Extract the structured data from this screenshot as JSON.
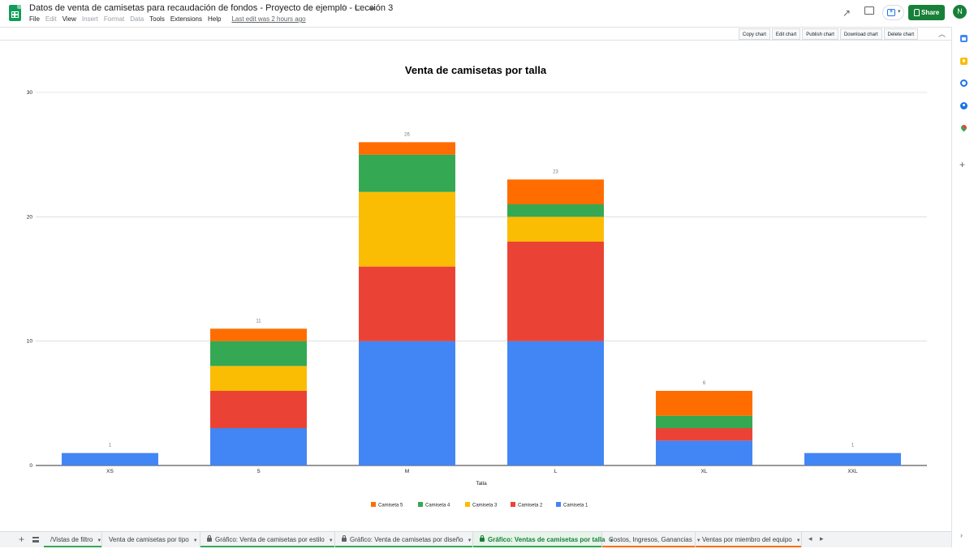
{
  "header": {
    "doc_title": "Datos de venta de camisetas para recaudación de fondos - Proyecto de ejemplo - Lección 3",
    "menu": [
      {
        "label": "File",
        "disabled": false
      },
      {
        "label": "Edit",
        "disabled": true
      },
      {
        "label": "View",
        "disabled": false
      },
      {
        "label": "Insert",
        "disabled": true
      },
      {
        "label": "Format",
        "disabled": true
      },
      {
        "label": "Data",
        "disabled": true
      },
      {
        "label": "Tools",
        "disabled": false
      },
      {
        "label": "Extensions",
        "disabled": false
      },
      {
        "label": "Help",
        "disabled": false
      }
    ],
    "last_edit": "Last edit was 2 hours ago",
    "share_label": "Share",
    "avatar_letter": "N"
  },
  "chart_toolbar": {
    "buttons": [
      "Copy chart",
      "Edit chart",
      "Publish chart",
      "Download chart",
      "Delete chart"
    ]
  },
  "chart_data": {
    "type": "bar",
    "stacked": true,
    "title": "Venta de camisetas por talla",
    "xlabel": "Talla",
    "ylabel": "",
    "ylim": [
      0,
      30
    ],
    "yticks": [
      0,
      10,
      20,
      30
    ],
    "categories": [
      "XS",
      "S",
      "M",
      "L",
      "XL",
      "XXL"
    ],
    "totals": [
      1,
      11,
      26,
      23,
      6,
      1
    ],
    "series": [
      {
        "name": "Camiseta 1",
        "color": "#4285f4",
        "values": [
          1,
          3,
          10,
          10,
          2,
          1
        ]
      },
      {
        "name": "Camiseta 2",
        "color": "#ea4335",
        "values": [
          0,
          3,
          6,
          8,
          1,
          0
        ]
      },
      {
        "name": "Camiseta 3",
        "color": "#fbbc04",
        "values": [
          0,
          2,
          6,
          2,
          0,
          0
        ]
      },
      {
        "name": "Camiseta 4",
        "color": "#34a853",
        "values": [
          0,
          2,
          3,
          1,
          1,
          0
        ]
      },
      {
        "name": "Camiseta 5",
        "color": "#ff6d01",
        "values": [
          0,
          1,
          1,
          2,
          2,
          0
        ]
      }
    ],
    "legend_position": "bottom",
    "legend_order": [
      "Camiseta 5",
      "Camiseta 4",
      "Camiseta 3",
      "Camiseta 2",
      "Camiseta 1"
    ],
    "grid": true
  },
  "sheet_tabs": [
    {
      "label": "/Vistas de filtro",
      "locked": false,
      "active": false,
      "color": "#34a853"
    },
    {
      "label": "Venta de camisetas por tipo",
      "locked": false,
      "active": false,
      "color": ""
    },
    {
      "label": "Gráfico: Venta de camisetas por estilo",
      "locked": true,
      "active": false,
      "color": "#34a853"
    },
    {
      "label": "Gráfico: Venta de camisetas por diseño",
      "locked": true,
      "active": false,
      "color": "#34a853"
    },
    {
      "label": "Gráfico: Ventas de camisetas por talla",
      "locked": true,
      "active": true,
      "color": "#34a853"
    },
    {
      "label": "Costos, Ingresos, Ganancias",
      "locked": false,
      "active": false,
      "color": "#ff6d01"
    },
    {
      "label": "Ventas por miembro del equipo",
      "locked": false,
      "active": false,
      "color": "#ff6d01"
    }
  ]
}
